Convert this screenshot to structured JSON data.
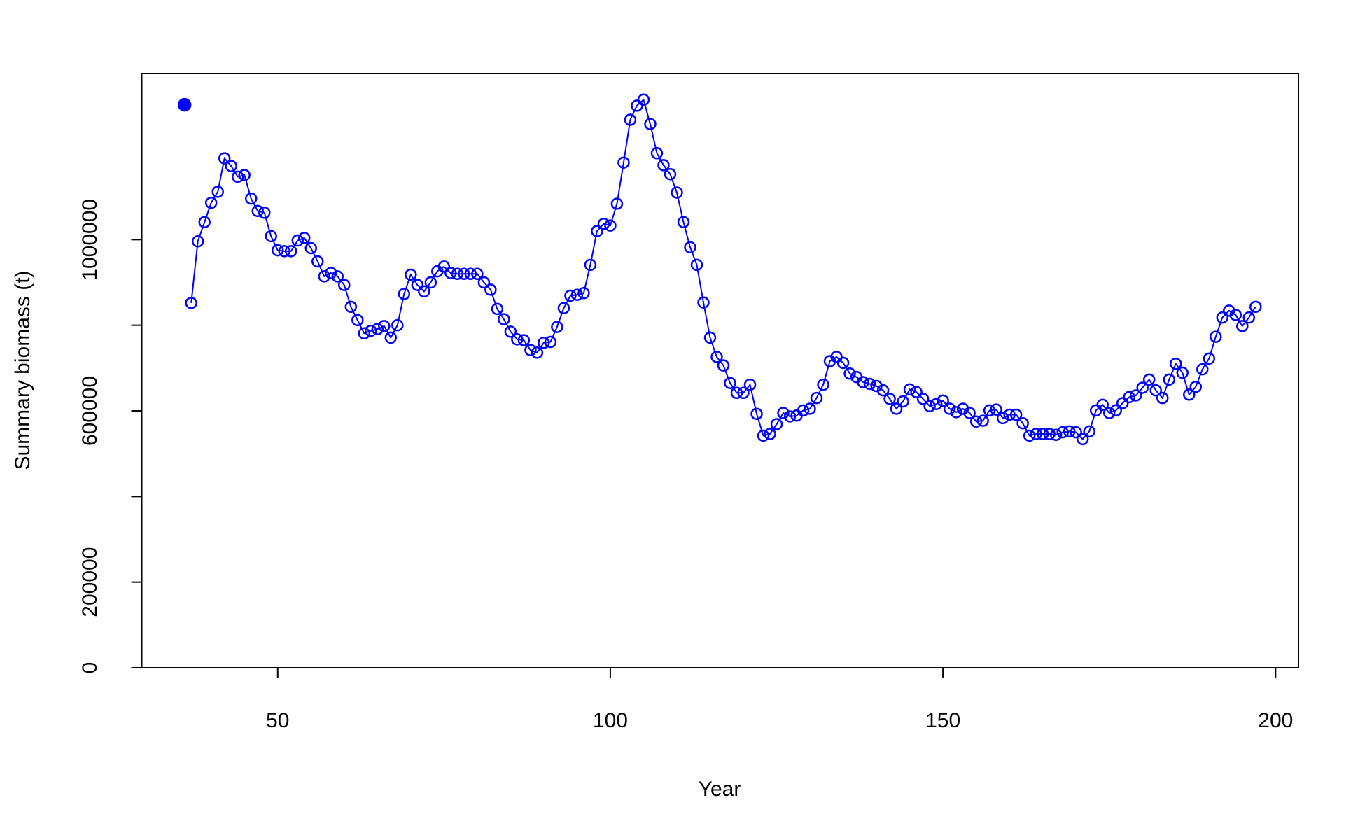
{
  "chart_data": {
    "type": "line",
    "xlabel": "Year",
    "ylabel": "Summary biomass (t)",
    "xlim": [
      29.56,
      203.44
    ],
    "ylim": [
      0,
      1388000
    ],
    "xticks": [
      50,
      100,
      150,
      200
    ],
    "yticks": [
      0,
      200000,
      {
        "value": 400000,
        "label": null
      },
      600000,
      {
        "value": 800000,
        "label": null
      },
      1000000
    ],
    "series": [
      {
        "color": "#0000ff",
        "marker": "open-circle",
        "line": true,
        "x": [
          37,
          38,
          39,
          40,
          41,
          42,
          43,
          44,
          45,
          46,
          47,
          48,
          49,
          50,
          51,
          52,
          53,
          54,
          55,
          56,
          57,
          58,
          59,
          60,
          61,
          62,
          63,
          64,
          65,
          66,
          67,
          68,
          69,
          70,
          71,
          72,
          73,
          74,
          75,
          76,
          77,
          78,
          79,
          80,
          81,
          82,
          83,
          84,
          85,
          86,
          87,
          88,
          89,
          90,
          91,
          92,
          93,
          94,
          95,
          96,
          97,
          98,
          99,
          100,
          101,
          102,
          103,
          104,
          105,
          106,
          107,
          108,
          109,
          110,
          111,
          112,
          113,
          114,
          115,
          116,
          117,
          118,
          119,
          120,
          121,
          122,
          123,
          124,
          125,
          126,
          127,
          128,
          129,
          130,
          131,
          132,
          133,
          134,
          135,
          136,
          137,
          138,
          139,
          140,
          141,
          142,
          143,
          144,
          145,
          146,
          147,
          148,
          149,
          150,
          151,
          152,
          153,
          154,
          155,
          156,
          157,
          158,
          159,
          160,
          161,
          162,
          163,
          164,
          165,
          166,
          167,
          168,
          169,
          170,
          171,
          172,
          173,
          174,
          175,
          176,
          177,
          178,
          179,
          180,
          181,
          182,
          183,
          184,
          185,
          186,
          187,
          188,
          189,
          190,
          191,
          192,
          193,
          194,
          195,
          196,
          197
        ],
        "values": [
          852000,
          996000,
          1041000,
          1086000,
          1112000,
          1190000,
          1172000,
          1147000,
          1151000,
          1096000,
          1067000,
          1063000,
          1008000,
          975000,
          973000,
          973000,
          998000,
          1004000,
          980000,
          949000,
          914000,
          922000,
          914000,
          894000,
          843000,
          812000,
          781000,
          787000,
          791000,
          798000,
          771000,
          800000,
          873000,
          918000,
          894000,
          879000,
          900000,
          926000,
          937000,
          922000,
          920000,
          920000,
          920000,
          920000,
          900000,
          883000,
          838000,
          814000,
          785000,
          767000,
          765000,
          742000,
          736000,
          759000,
          761000,
          796000,
          840000,
          869000,
          871000,
          875000,
          941000,
          1020000,
          1037000,
          1033000,
          1084000,
          1180000,
          1280000,
          1313000,
          1327000,
          1270000,
          1202000,
          1174000,
          1153000,
          1110000,
          1041000,
          982000,
          941000,
          853000,
          771000,
          726000,
          706000,
          665000,
          642000,
          642000,
          661000,
          593000,
          542000,
          546000,
          569000,
          595000,
          587000,
          589000,
          601000,
          605000,
          630000,
          661000,
          716000,
          726000,
          712000,
          687000,
          679000,
          667000,
          663000,
          658000,
          648000,
          628000,
          605000,
          622000,
          650000,
          644000,
          628000,
          611000,
          616000,
          624000,
          605000,
          597000,
          605000,
          595000,
          575000,
          577000,
          601000,
          603000,
          583000,
          591000,
          591000,
          571000,
          542000,
          546000,
          546000,
          546000,
          544000,
          550000,
          552000,
          550000,
          534000,
          552000,
          601000,
          614000,
          595000,
          601000,
          618000,
          632000,
          636000,
          654000,
          673000,
          648000,
          630000,
          673000,
          710000,
          689000,
          638000,
          656000,
          697000,
          722000,
          773000,
          818000,
          834000,
          824000,
          798000,
          818000,
          843000
        ]
      },
      {
        "color": "#0000ff",
        "marker": "filled-circle",
        "line": false,
        "x": [
          36
        ],
        "values": [
          1315000
        ]
      }
    ]
  }
}
